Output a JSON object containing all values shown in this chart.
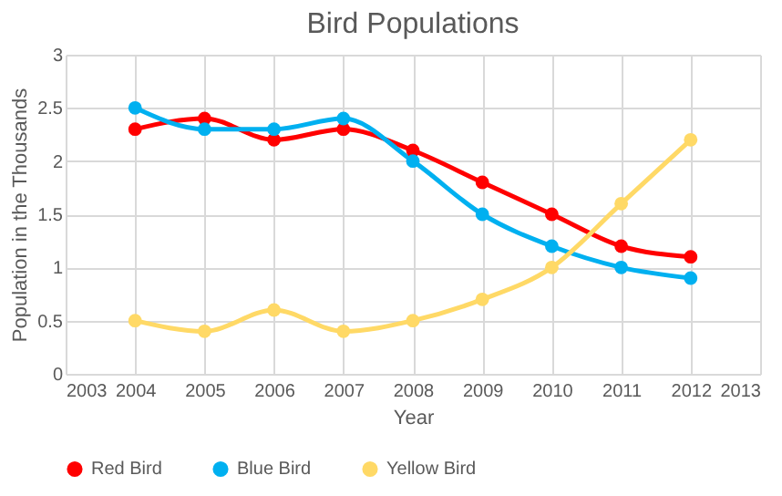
{
  "chart_data": {
    "type": "line",
    "title": "Bird Populations",
    "xlabel": "Year",
    "ylabel": "Population in the Thousands",
    "x": [
      2004,
      2005,
      2006,
      2007,
      2008,
      2009,
      2010,
      2011,
      2012
    ],
    "series": [
      {
        "name": "Red Bird",
        "color": "#ff0000",
        "values": [
          2.3,
          2.4,
          2.2,
          2.3,
          2.1,
          1.8,
          1.5,
          1.2,
          1.1
        ]
      },
      {
        "name": "Blue Bird",
        "color": "#00b0f0",
        "values": [
          2.5,
          2.3,
          2.3,
          2.4,
          2.0,
          1.5,
          1.2,
          1.0,
          0.9
        ]
      },
      {
        "name": "Yellow Bird",
        "color": "#ffd966",
        "values": [
          0.5,
          0.4,
          0.6,
          0.4,
          0.5,
          0.7,
          1.0,
          1.6,
          2.2
        ]
      }
    ],
    "xlim": [
      2003,
      2013
    ],
    "xticks": [
      2003,
      2004,
      2005,
      2006,
      2007,
      2008,
      2009,
      2010,
      2011,
      2012,
      2013
    ],
    "ylim": [
      0,
      3
    ],
    "yticks": [
      0,
      0.5,
      1,
      1.5,
      2,
      2.5,
      3
    ],
    "grid": true,
    "legend": "bottom",
    "marker": "circle",
    "line_style": "solid"
  }
}
